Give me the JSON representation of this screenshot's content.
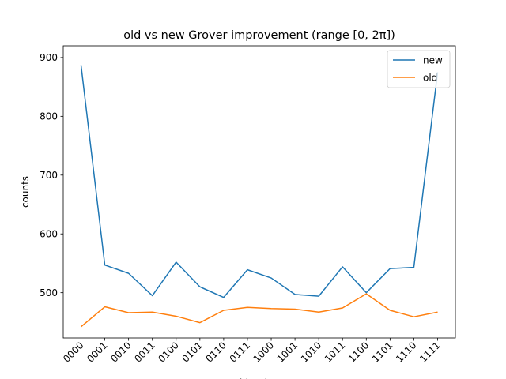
{
  "chart_data": {
    "type": "line",
    "title": "old vs new Grover improvement (range [0, 2π])",
    "xlabel": "bitstring",
    "ylabel": "counts",
    "categories": [
      "0000",
      "0001",
      "0010",
      "0011",
      "0100",
      "0101",
      "0110",
      "0111",
      "1000",
      "1001",
      "1010",
      "1011",
      "1100",
      "1101",
      "1110",
      "1111"
    ],
    "ylim": [
      423,
      920
    ],
    "yticks": [
      500,
      600,
      700,
      800,
      900
    ],
    "grid": false,
    "legend_position": "top-right",
    "series": [
      {
        "name": "new",
        "color": "#1f77b4",
        "values": [
          887,
          547,
          533,
          495,
          552,
          510,
          492,
          539,
          525,
          497,
          494,
          544,
          500,
          541,
          543,
          875
        ]
      },
      {
        "name": "old",
        "color": "#ff7f0e",
        "values": [
          442,
          476,
          466,
          467,
          460,
          449,
          470,
          475,
          473,
          472,
          467,
          474,
          498,
          470,
          459,
          467
        ]
      }
    ]
  }
}
